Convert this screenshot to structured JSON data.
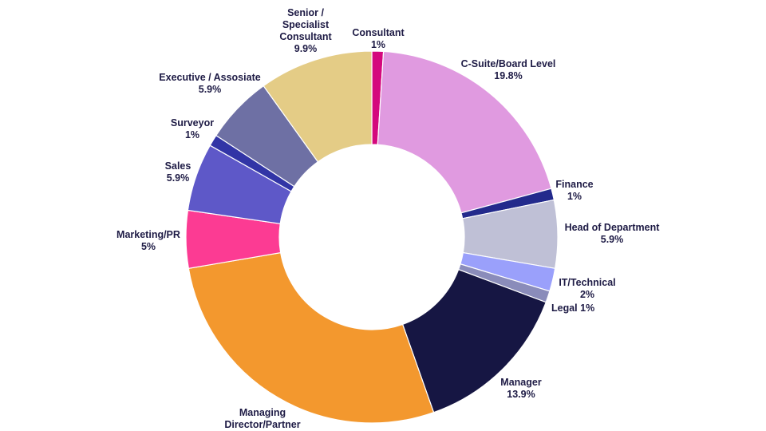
{
  "chart_data": {
    "type": "pie",
    "variant": "donut",
    "title": "",
    "legend": "none",
    "start_angle_deg": 0,
    "direction": "clockwise",
    "slices": [
      {
        "label": "Consultant",
        "value_label": "1%",
        "value": 1.0,
        "color": "#d4087d"
      },
      {
        "label": "C-Suite/Board Level",
        "value_label": "19.8%",
        "value": 19.8,
        "color": "#e09ae0"
      },
      {
        "label": "Finance",
        "value_label": "1%",
        "value": 1.0,
        "color": "#232a8c"
      },
      {
        "label": "Head of Department",
        "value_label": "5.9%",
        "value": 5.9,
        "color": "#bfc0d6"
      },
      {
        "label": "IT/Technical",
        "value_label": "2%",
        "value": 2.0,
        "color": "#9aa0fb"
      },
      {
        "label": "Legal",
        "value_label": "1%",
        "value": 1.0,
        "color": "#8a8cba"
      },
      {
        "label": "Manager",
        "value_label": "13.9%",
        "value": 13.9,
        "color": "#161643"
      },
      {
        "label": "Managing Director/Partner",
        "value_label": "",
        "value": 27.7,
        "color": "#f3982e"
      },
      {
        "label": "Marketing/PR",
        "value_label": "5%",
        "value": 5.0,
        "color": "#fc3b93"
      },
      {
        "label": "Sales",
        "value_label": "5.9%",
        "value": 5.9,
        "color": "#5e58c8"
      },
      {
        "label": "Surveyor",
        "value_label": "1%",
        "value": 1.0,
        "color": "#3235a6"
      },
      {
        "label": "Executive / Assosiate",
        "value_label": "5.9%",
        "value": 5.9,
        "color": "#6e70a4"
      },
      {
        "label": "Senior / Specialist Consultant",
        "value_label": "9.9%",
        "value": 9.9,
        "color": "#e4cc86"
      }
    ]
  }
}
